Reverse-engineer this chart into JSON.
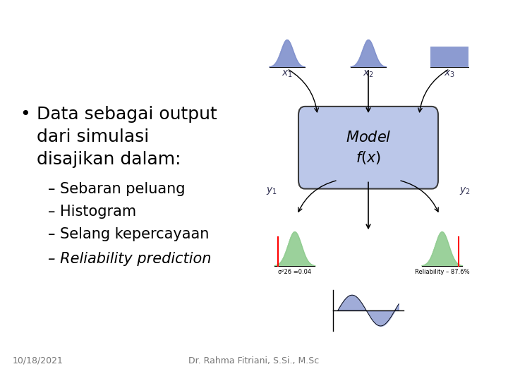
{
  "background_color": "#ffffff",
  "bullet_text_lines": [
    "Data sebagai output",
    "dari simulasi",
    "disajikan dalam:"
  ],
  "sub_items": [
    "– Sebaran peluang",
    "– Histogram",
    "– Selang kepercayaan",
    "– Reliability prediction"
  ],
  "sub_item_italic": [
    false,
    false,
    false,
    true
  ],
  "footer_left": "10/18/2021",
  "footer_center": "Dr. Rahma Fitriani, S.Si., M.Sc",
  "text_color": "#000000",
  "footer_color": "#777777",
  "bullet_fontsize": 18,
  "sub_fontsize": 15,
  "footer_fontsize": 9,
  "diagram_blue_color": "#8090cc",
  "diagram_green_color": "#90cc90",
  "diagram_box_color": "#b8c4e8",
  "diagram_box_edge": "#333333",
  "label_text_color": "#333355",
  "sigma_text": "σ²26 =0.04",
  "reliability_text": "Reliability – 87.6%"
}
